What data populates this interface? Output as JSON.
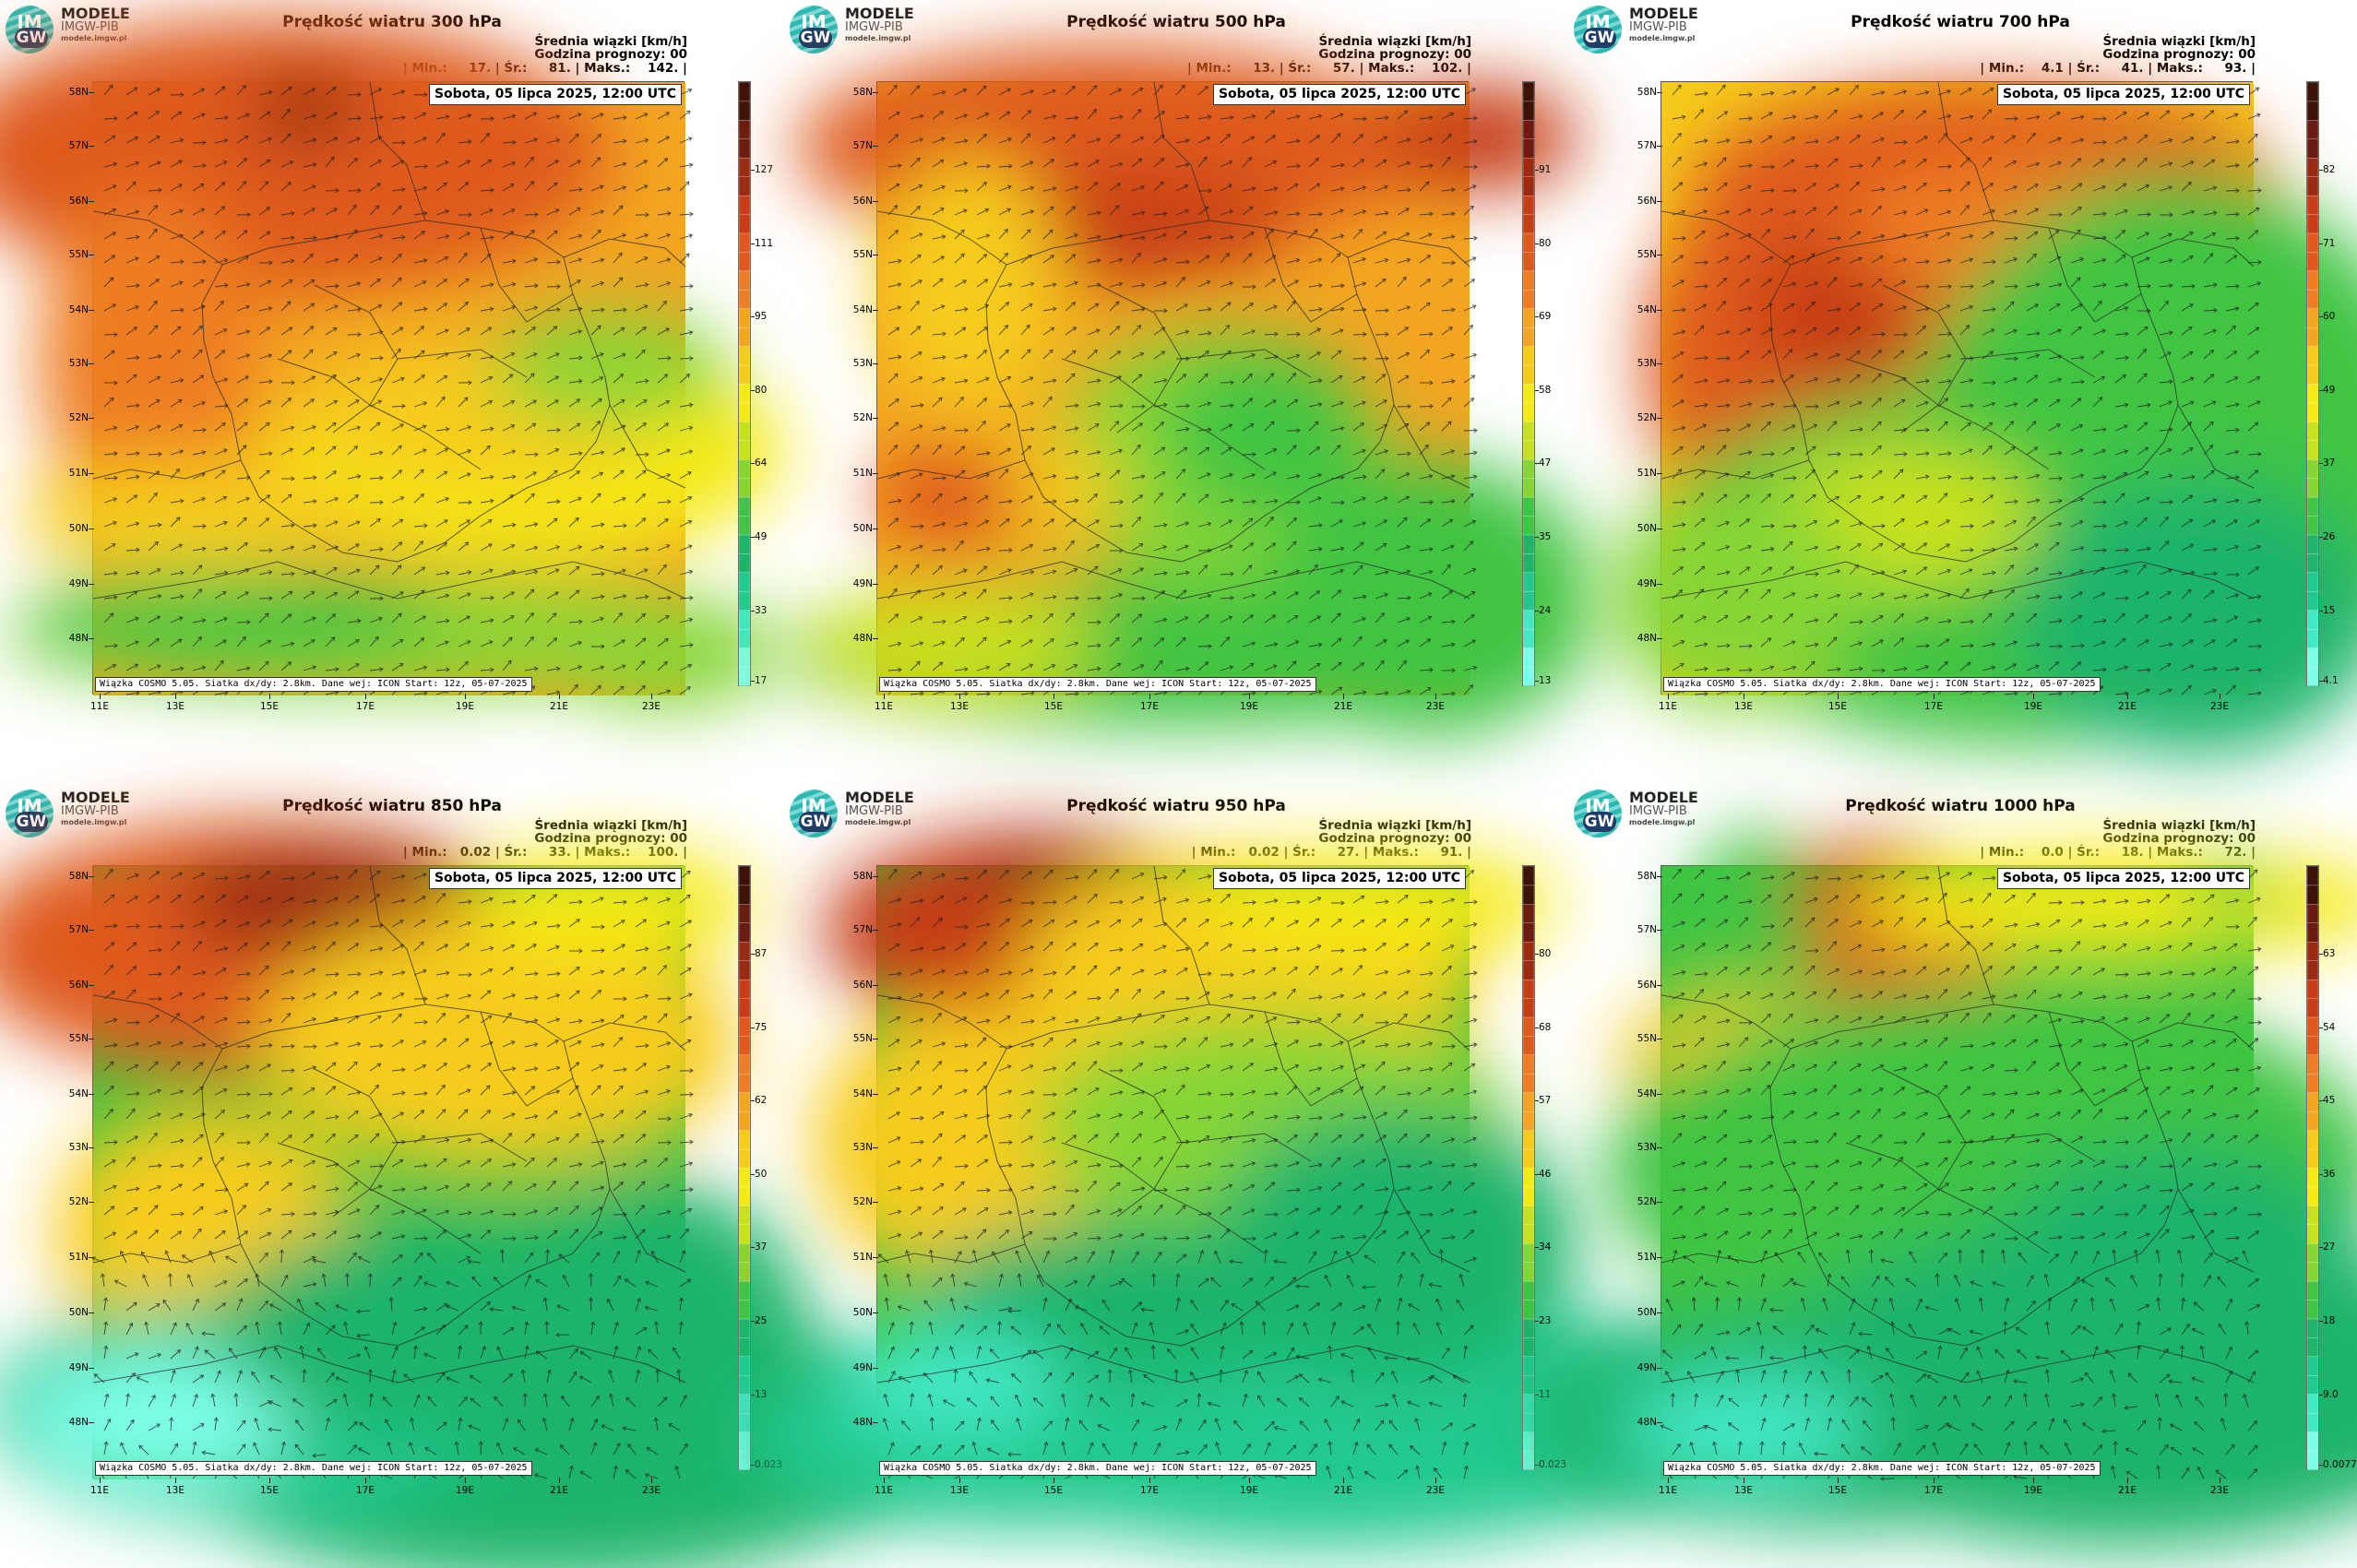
{
  "brand": {
    "line1": "MODELE",
    "line2": "IMGW-PIB",
    "line3": "modele.imgw.pl",
    "logo_top": "IM",
    "logo_bottom": "GW"
  },
  "common": {
    "unit_label": "Średnia wiązki [km/h]",
    "forecast_label": "Godzina prognozy: 00",
    "date_label": "Sobota, 05 lipca 2025, 12:00 UTC",
    "footnote": "Wiązka COSMO 5.05. Siatka dx/dy: 2.8km. Dane wej: ICON Start: 12z, 05-07-2025",
    "lat_labels": [
      "58N",
      "57N",
      "56N",
      "55N",
      "54N",
      "53N",
      "52N",
      "51N",
      "50N",
      "49N",
      "48N"
    ],
    "lon_labels": [
      "11E",
      "13E",
      "15E",
      "17E",
      "19E",
      "21E",
      "23E"
    ]
  },
  "colors": {
    "scale": [
      "#7fffe8",
      "#43e8c4",
      "#22c98f",
      "#1fb46a",
      "#3fc443",
      "#86d534",
      "#c8e11f",
      "#f4ea17",
      "#f6cc1c",
      "#f3a522",
      "#ee7d24",
      "#de5a1c",
      "#c63d16",
      "#9a2a12",
      "#6a1c10",
      "#3d1208"
    ],
    "borders": "#2b2b2b",
    "arrows": "#222222"
  },
  "panels": [
    {
      "title": "Prędkość wiatru 300 hPa",
      "stats": "| Min.:     17. | Śr.:     81. | Maks.:    142. |",
      "colorbar_labels": [
        "127",
        "111",
        "95",
        "80",
        "64",
        "49",
        "33",
        "17"
      ]
    },
    {
      "title": "Prędkość wiatru 500 hPa",
      "stats": "| Min.:     13. | Śr.:     57. | Maks.:    102. |",
      "colorbar_labels": [
        "91",
        "80",
        "69",
        "58",
        "47",
        "35",
        "24",
        "13"
      ]
    },
    {
      "title": "Prędkość wiatru 700 hPa",
      "stats": "| Min.:    4.1 | Śr.:     41. | Maks.:     93. |",
      "colorbar_labels": [
        "82",
        "71",
        "60",
        "49",
        "37",
        "26",
        "15",
        "4.1"
      ]
    },
    {
      "title": "Prędkość wiatru 850 hPa",
      "stats": "| Min.:   0.02 | Śr.:     33. | Maks.:    100. |",
      "colorbar_labels": [
        "87",
        "75",
        "62",
        "50",
        "37",
        "25",
        "13",
        "0.023"
      ]
    },
    {
      "title": "Prędkość wiatru 950 hPa",
      "stats": "| Min.:   0.02 | Śr.:     27. | Maks.:     91. |",
      "colorbar_labels": [
        "80",
        "68",
        "57",
        "46",
        "34",
        "23",
        "11",
        "0.023"
      ]
    },
    {
      "title": "Prędkość wiatru 1000 hPa",
      "stats": "| Min.:    0.0 | Śr.:     18. | Maks.:     72. |",
      "colorbar_labels": [
        "63",
        "54",
        "45",
        "36",
        "27",
        "18",
        "9.0",
        "0.0077"
      ]
    }
  ]
}
